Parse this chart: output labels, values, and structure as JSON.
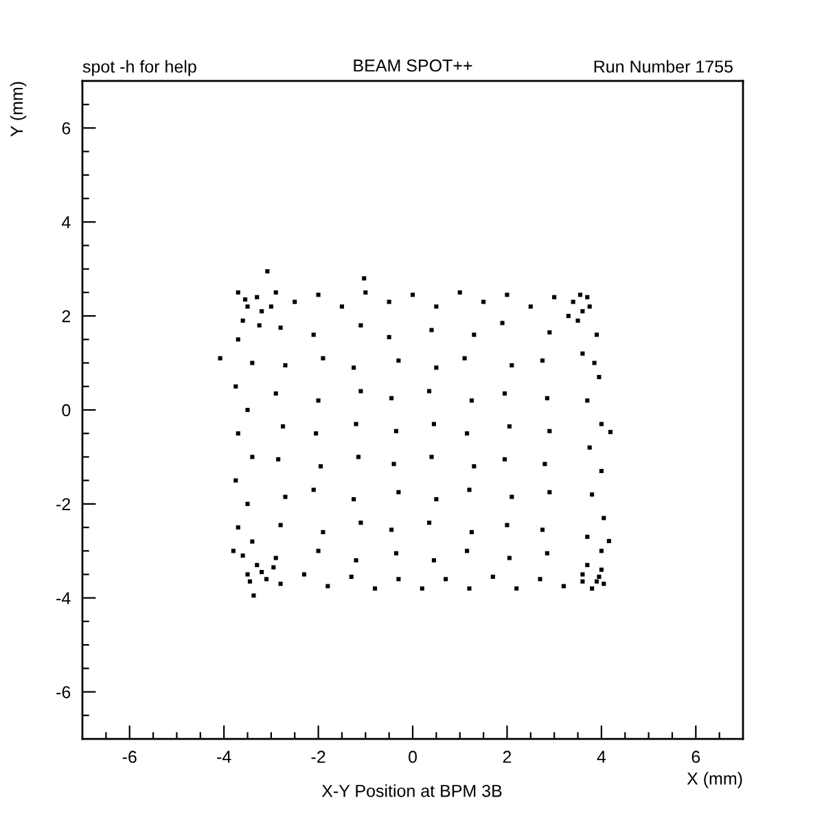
{
  "chart_data": {
    "type": "scatter",
    "title": "BEAM SPOT++",
    "xlabel": "X (mm)",
    "ylabel": "Y (mm)",
    "annotations": [
      "spot -h for help",
      "Run Number 1755",
      "X-Y Position at BPM 3B"
    ],
    "color": "#000000",
    "marker": "square",
    "grid": false,
    "xlim": [
      -7,
      7
    ],
    "ylim": [
      -7,
      7
    ],
    "xticks": [
      {
        "value": -6.5,
        "label": null
      },
      -6,
      {
        "value": -5.5,
        "label": null
      },
      {
        "value": -5,
        "label": null
      },
      {
        "value": -4.5,
        "label": null
      },
      -4,
      {
        "value": -3.5,
        "label": null
      },
      {
        "value": -3,
        "label": null
      },
      {
        "value": -2.5,
        "label": null
      },
      -2,
      {
        "value": -1.5,
        "label": null
      },
      {
        "value": -1,
        "label": null
      },
      {
        "value": -0.5,
        "label": null
      },
      0,
      {
        "value": 0.5,
        "label": null
      },
      {
        "value": 1,
        "label": null
      },
      {
        "value": 1.5,
        "label": null
      },
      2,
      {
        "value": 2.5,
        "label": null
      },
      {
        "value": 3,
        "label": null
      },
      {
        "value": 3.5,
        "label": null
      },
      4,
      {
        "value": 4.5,
        "label": null
      },
      {
        "value": 5,
        "label": null
      },
      {
        "value": 5.5,
        "label": null
      },
      6,
      {
        "value": 6.5,
        "label": null
      }
    ],
    "yticks": [
      {
        "value": -6.5,
        "label": null
      },
      -6,
      {
        "value": -5.5,
        "label": null
      },
      {
        "value": -5,
        "label": null
      },
      {
        "value": -4.5,
        "label": null
      },
      -4,
      {
        "value": -3.5,
        "label": null
      },
      {
        "value": -3,
        "label": null
      },
      {
        "value": -2.5,
        "label": null
      },
      -2,
      {
        "value": -1.5,
        "label": null
      },
      {
        "value": -1,
        "label": null
      },
      {
        "value": -0.5,
        "label": null
      },
      0,
      {
        "value": 0.5,
        "label": null
      },
      {
        "value": 1,
        "label": null
      },
      {
        "value": 1.5,
        "label": null
      },
      2,
      {
        "value": 2.5,
        "label": null
      },
      {
        "value": 3,
        "label": null
      },
      {
        "value": 3.5,
        "label": null
      },
      4,
      {
        "value": 4.5,
        "label": null
      },
      {
        "value": 5,
        "label": null
      },
      {
        "value": 5.5,
        "label": null
      },
      6,
      {
        "value": 6.5,
        "label": null
      }
    ],
    "x": [
      -3.7,
      -3.5,
      -3.3,
      -3.6,
      -3.2,
      -2.9,
      -2.5,
      -2.0,
      -1.5,
      -1.0,
      -0.5,
      0.0,
      0.5,
      1.0,
      1.5,
      2.0,
      2.5,
      3.0,
      3.4,
      3.6,
      3.7,
      3.5,
      -3.5,
      -3.3,
      -3.1,
      -3.6,
      -2.8,
      -2.3,
      -1.8,
      -1.3,
      -0.8,
      -0.3,
      0.2,
      0.7,
      1.2,
      1.7,
      2.2,
      2.7,
      3.2,
      3.6,
      3.9,
      4.0,
      3.8,
      4.05,
      -3.7,
      -3.4,
      -3.75,
      -3.5,
      -3.7,
      -3.4,
      -3.75,
      -3.5,
      -3.7,
      -3.4,
      -3.8,
      3.9,
      3.6,
      3.95,
      3.7,
      4.0,
      3.75,
      4.0,
      3.8,
      4.05,
      3.7,
      4.0,
      3.85,
      -2.8,
      -2.1,
      -1.1,
      -0.5,
      0.4,
      1.3,
      1.9,
      2.9,
      -2.7,
      -1.9,
      -1.25,
      -0.3,
      0.5,
      1.1,
      2.1,
      2.75,
      -2.9,
      -2.0,
      -1.1,
      -0.45,
      0.35,
      1.25,
      1.95,
      2.85,
      -2.75,
      -2.05,
      -1.2,
      -0.35,
      0.45,
      1.15,
      2.05,
      2.9,
      -2.85,
      -1.95,
      -1.15,
      -0.4,
      0.4,
      1.3,
      1.95,
      2.8,
      -2.7,
      -2.1,
      -1.25,
      -0.3,
      0.5,
      1.2,
      2.1,
      2.9,
      -2.8,
      -1.9,
      -1.1,
      -0.45,
      0.35,
      1.25,
      2.0,
      2.75,
      -2.9,
      -2.0,
      -1.2,
      -0.35,
      0.45,
      1.15,
      2.05,
      2.85,
      -3.55,
      -3.25,
      -3.0,
      -3.2,
      -3.45,
      -2.95,
      3.3,
      3.75,
      3.55,
      3.7,
      3.95,
      3.6,
      -4.08,
      -3.08,
      -1.03,
      4.19,
      4.16,
      -3.37
    ],
    "values": [
      2.5,
      2.2,
      2.4,
      1.9,
      2.1,
      2.5,
      2.3,
      2.45,
      2.2,
      2.5,
      2.3,
      2.45,
      2.2,
      2.5,
      2.3,
      2.45,
      2.2,
      2.4,
      2.3,
      2.1,
      2.4,
      1.9,
      -3.5,
      -3.3,
      -3.6,
      -3.1,
      -3.7,
      -3.5,
      -3.75,
      -3.55,
      -3.8,
      -3.6,
      -3.8,
      -3.6,
      -3.8,
      -3.55,
      -3.8,
      -3.6,
      -3.75,
      -3.5,
      -3.65,
      -3.4,
      -3.8,
      -3.7,
      1.5,
      1.0,
      0.5,
      0.0,
      -0.5,
      -1.0,
      -1.5,
      -2.0,
      -2.5,
      -2.8,
      -3.0,
      1.6,
      1.2,
      0.7,
      0.2,
      -0.3,
      -0.8,
      -1.3,
      -1.8,
      -2.3,
      -2.7,
      -3.0,
      1.0,
      1.75,
      1.6,
      1.8,
      1.55,
      1.7,
      1.6,
      1.85,
      1.65,
      0.95,
      1.1,
      0.9,
      1.05,
      0.9,
      1.1,
      0.95,
      1.05,
      0.35,
      0.2,
      0.4,
      0.25,
      0.4,
      0.2,
      0.35,
      0.25,
      -0.35,
      -0.5,
      -0.3,
      -0.45,
      -0.3,
      -0.5,
      -0.35,
      -0.45,
      -1.05,
      -1.2,
      -1.0,
      -1.15,
      -1.0,
      -1.2,
      -1.05,
      -1.15,
      -1.85,
      -1.7,
      -1.9,
      -1.75,
      -1.9,
      -1.7,
      -1.85,
      -1.75,
      -2.45,
      -2.6,
      -2.4,
      -2.55,
      -2.4,
      -2.6,
      -2.45,
      -2.55,
      -3.15,
      -3.0,
      -3.2,
      -3.05,
      -3.2,
      -3.0,
      -3.15,
      -3.05,
      2.35,
      1.8,
      2.2,
      -3.45,
      -3.65,
      -3.35,
      2.0,
      2.2,
      2.45,
      -3.3,
      -3.55,
      -3.65,
      1.1,
      2.95,
      2.8,
      -0.47,
      -2.79,
      -3.95
    ]
  }
}
